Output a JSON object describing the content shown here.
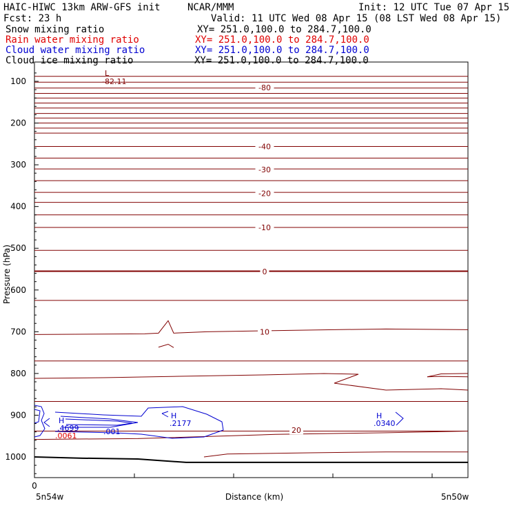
{
  "header": {
    "left_line1": "HAIC-HIWC 13km ARW-GFS init",
    "center_line1": "NCAR/MMM",
    "right_line1": "Init: 12 UTC Tue 07 Apr 15",
    "left_line2": "Fcst:    23 h",
    "right_line2": "Valid: 11 UTC Wed 08 Apr 15 (08 LST Wed 08 Apr 15)"
  },
  "legend": [
    {
      "name": "Snow mixing ratio",
      "xy": "XY= 251.0,100.0 to 284.7,100.0",
      "color": "#000000"
    },
    {
      "name": "Rain water mixing ratio",
      "xy": "XY= 251.0,100.0 to 284.7,100.0",
      "color": "#e00000"
    },
    {
      "name": "Cloud water mixing ratio",
      "xy": "XY= 251.0,100.0 to 284.7,100.0",
      "color": "#0000d0"
    },
    {
      "name": "Cloud ice mixing ratio",
      "xy": "XY= 251.0,100.0 to 284.7,100.0",
      "color": "#000000"
    }
  ],
  "chart_data": {
    "type": "contour",
    "xlabel": "Distance (km)",
    "ylabel": "Pressure (hPa)",
    "x_tick_labels": [
      "0"
    ],
    "x_end_labels": [
      "5n54w",
      "5n50w"
    ],
    "y_ticks": [
      100,
      200,
      300,
      400,
      500,
      600,
      700,
      800,
      900,
      1000
    ],
    "ylim": [
      1050,
      70
    ],
    "temperature_contours": {
      "color": "#800000",
      "levels_hpa": [
        88,
        102,
        116,
        129,
        140,
        152,
        164,
        177,
        188,
        200,
        212,
        224,
        256,
        284,
        310,
        338,
        366,
        390,
        420,
        450,
        505,
        555,
        625,
        700,
        770,
        820,
        867,
        938,
        1000
      ],
      "labels": [
        {
          "text": "-80",
          "p": 115
        },
        {
          "text": "-40",
          "p": 256
        },
        {
          "text": "-30",
          "p": 311
        },
        {
          "text": "-20",
          "p": 368
        },
        {
          "text": "-10",
          "p": 450
        },
        {
          "text": "0",
          "p": 556
        },
        {
          "text": "10",
          "p": 700
        },
        {
          "text": "20",
          "p": 936
        }
      ],
      "low": {
        "marker": "L",
        "value": "-82.11"
      }
    },
    "cloud_water": {
      "color": "#0000d0",
      "maxima": [
        {
          "marker": "H",
          "value": ".2177"
        },
        {
          "marker": "H",
          "value": ".0340"
        },
        {
          "marker": "H",
          "value": ".4699"
        }
      ],
      "labels": [
        ".001"
      ]
    },
    "rain_water": {
      "color": "#e00000",
      "maxima": [
        {
          "value": ".0061"
        }
      ]
    }
  }
}
